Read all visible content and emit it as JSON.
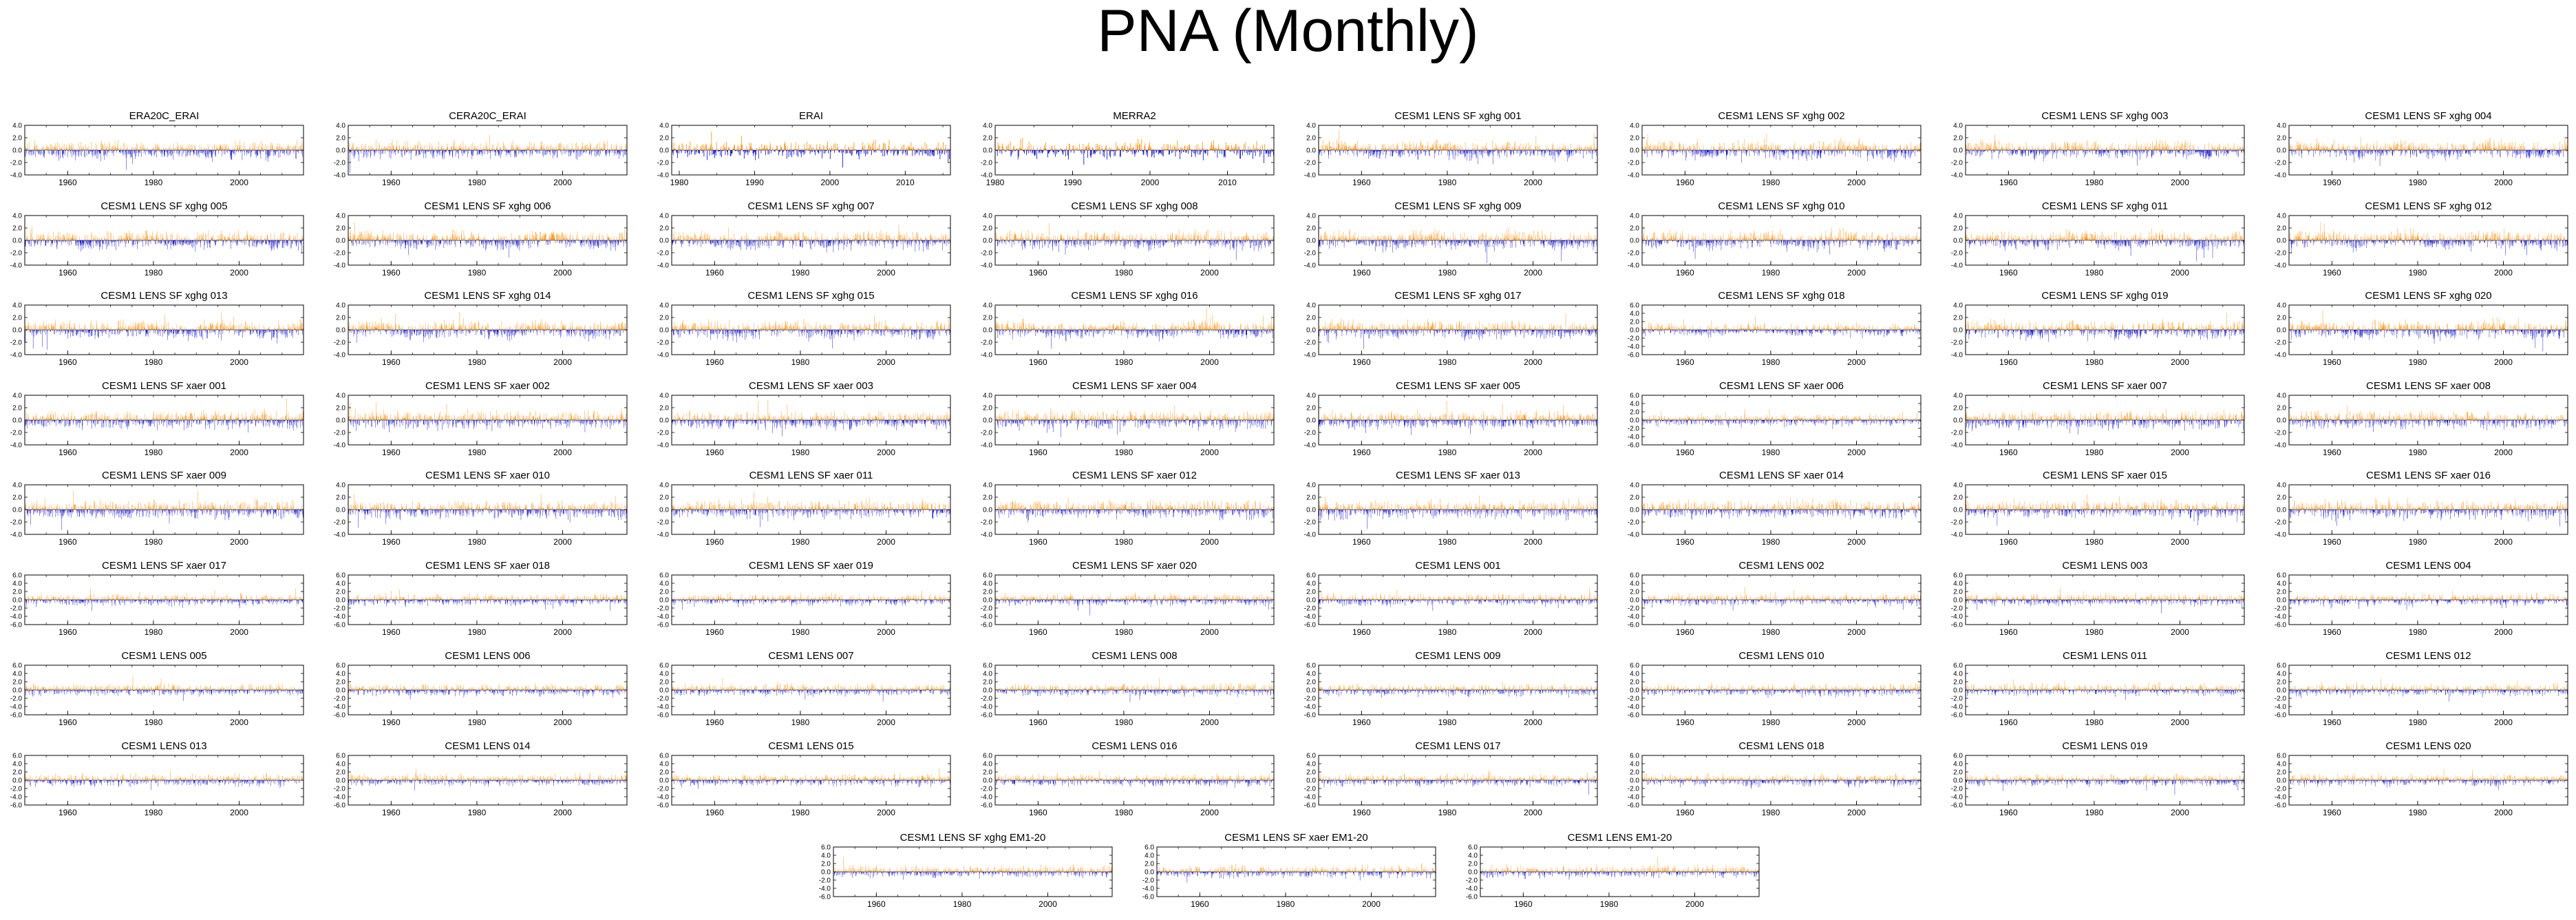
{
  "title": "PNA (Monthly)",
  "chart_data": {
    "type": "bar",
    "title": "PNA (Monthly)",
    "xlabel": "",
    "ylabel": "",
    "positive_color": "#ff8c00",
    "negative_color": "#0000cd",
    "grid": false,
    "ytick_labels_a": [
      "4.0",
      "2.0",
      "0.0",
      "-2.0",
      "-4.0"
    ],
    "ytick_labels_b": [
      "6.0",
      "4.0",
      "2.0",
      "0.0",
      "-2.0",
      "-4.0",
      "-6.0"
    ],
    "panels": [
      {
        "name": "ERA20C_ERAI",
        "xlim": [
          1950,
          2015
        ],
        "ylim": [
          -4,
          4
        ],
        "xticks": [
          "1960",
          "1980",
          "2000"
        ]
      },
      {
        "name": "CERA20C_ERAI",
        "xlim": [
          1950,
          2015
        ],
        "ylim": [
          -4,
          4
        ],
        "xticks": [
          "1960",
          "1980",
          "2000"
        ]
      },
      {
        "name": "ERAI",
        "xlim": [
          1979,
          2016
        ],
        "ylim": [
          -4,
          4
        ],
        "xticks": [
          "1980",
          "1990",
          "2000",
          "2010"
        ]
      },
      {
        "name": "MERRA2",
        "xlim": [
          1980,
          2016
        ],
        "ylim": [
          -4,
          4
        ],
        "xticks": [
          "1980",
          "1990",
          "2000",
          "2010"
        ]
      },
      {
        "name": "CESM1 LENS SF xghg 001",
        "xlim": [
          1950,
          2015
        ],
        "ylim": [
          -4,
          4
        ],
        "xticks": [
          "1960",
          "1980",
          "2000"
        ]
      },
      {
        "name": "CESM1 LENS SF xghg 002",
        "xlim": [
          1950,
          2015
        ],
        "ylim": [
          -4,
          4
        ],
        "xticks": [
          "1960",
          "1980",
          "2000"
        ]
      },
      {
        "name": "CESM1 LENS SF xghg 003",
        "xlim": [
          1950,
          2015
        ],
        "ylim": [
          -4,
          4
        ],
        "xticks": [
          "1960",
          "1980",
          "2000"
        ]
      },
      {
        "name": "CESM1 LENS SF xghg 004",
        "xlim": [
          1950,
          2015
        ],
        "ylim": [
          -4,
          4
        ],
        "xticks": [
          "1960",
          "1980",
          "2000"
        ]
      },
      {
        "name": "CESM1 LENS SF xghg 005",
        "xlim": [
          1950,
          2015
        ],
        "ylim": [
          -4,
          4
        ],
        "xticks": [
          "1960",
          "1980",
          "2000"
        ]
      },
      {
        "name": "CESM1 LENS SF xghg 006",
        "xlim": [
          1950,
          2015
        ],
        "ylim": [
          -4,
          4
        ],
        "xticks": [
          "1960",
          "1980",
          "2000"
        ]
      },
      {
        "name": "CESM1 LENS SF xghg 007",
        "xlim": [
          1950,
          2015
        ],
        "ylim": [
          -4,
          4
        ],
        "xticks": [
          "1960",
          "1980",
          "2000"
        ]
      },
      {
        "name": "CESM1 LENS SF xghg 008",
        "xlim": [
          1950,
          2015
        ],
        "ylim": [
          -4,
          4
        ],
        "xticks": [
          "1960",
          "1980",
          "2000"
        ]
      },
      {
        "name": "CESM1 LENS SF xghg 009",
        "xlim": [
          1950,
          2015
        ],
        "ylim": [
          -4,
          4
        ],
        "xticks": [
          "1960",
          "1980",
          "2000"
        ]
      },
      {
        "name": "CESM1 LENS SF xghg 010",
        "xlim": [
          1950,
          2015
        ],
        "ylim": [
          -4,
          4
        ],
        "xticks": [
          "1960",
          "1980",
          "2000"
        ]
      },
      {
        "name": "CESM1 LENS SF xghg 011",
        "xlim": [
          1950,
          2015
        ],
        "ylim": [
          -4,
          4
        ],
        "xticks": [
          "1960",
          "1980",
          "2000"
        ]
      },
      {
        "name": "CESM1 LENS SF xghg 012",
        "xlim": [
          1950,
          2015
        ],
        "ylim": [
          -4,
          4
        ],
        "xticks": [
          "1960",
          "1980",
          "2000"
        ]
      },
      {
        "name": "CESM1 LENS SF xghg 013",
        "xlim": [
          1950,
          2015
        ],
        "ylim": [
          -4,
          4
        ],
        "xticks": [
          "1960",
          "1980",
          "2000"
        ]
      },
      {
        "name": "CESM1 LENS SF xghg 014",
        "xlim": [
          1950,
          2015
        ],
        "ylim": [
          -4,
          4
        ],
        "xticks": [
          "1960",
          "1980",
          "2000"
        ]
      },
      {
        "name": "CESM1 LENS SF xghg 015",
        "xlim": [
          1950,
          2015
        ],
        "ylim": [
          -4,
          4
        ],
        "xticks": [
          "1960",
          "1980",
          "2000"
        ]
      },
      {
        "name": "CESM1 LENS SF xghg 016",
        "xlim": [
          1950,
          2015
        ],
        "ylim": [
          -4,
          4
        ],
        "xticks": [
          "1960",
          "1980",
          "2000"
        ]
      },
      {
        "name": "CESM1 LENS SF xghg 017",
        "xlim": [
          1950,
          2015
        ],
        "ylim": [
          -4,
          4
        ],
        "xticks": [
          "1960",
          "1980",
          "2000"
        ]
      },
      {
        "name": "CESM1 LENS SF xghg 018",
        "xlim": [
          1950,
          2015
        ],
        "ylim": [
          -6,
          6
        ],
        "xticks": [
          "1960",
          "1980",
          "2000"
        ]
      },
      {
        "name": "CESM1 LENS SF xghg 019",
        "xlim": [
          1950,
          2015
        ],
        "ylim": [
          -4,
          4
        ],
        "xticks": [
          "1960",
          "1980",
          "2000"
        ]
      },
      {
        "name": "CESM1 LENS SF xghg 020",
        "xlim": [
          1950,
          2015
        ],
        "ylim": [
          -4,
          4
        ],
        "xticks": [
          "1960",
          "1980",
          "2000"
        ]
      },
      {
        "name": "CESM1 LENS SF xaer 001",
        "xlim": [
          1950,
          2015
        ],
        "ylim": [
          -4,
          4
        ],
        "xticks": [
          "1960",
          "1980",
          "2000"
        ]
      },
      {
        "name": "CESM1 LENS SF xaer 002",
        "xlim": [
          1950,
          2015
        ],
        "ylim": [
          -4,
          4
        ],
        "xticks": [
          "1960",
          "1980",
          "2000"
        ]
      },
      {
        "name": "CESM1 LENS SF xaer 003",
        "xlim": [
          1950,
          2015
        ],
        "ylim": [
          -4,
          4
        ],
        "xticks": [
          "1960",
          "1980",
          "2000"
        ]
      },
      {
        "name": "CESM1 LENS SF xaer 004",
        "xlim": [
          1950,
          2015
        ],
        "ylim": [
          -4,
          4
        ],
        "xticks": [
          "1960",
          "1980",
          "2000"
        ]
      },
      {
        "name": "CESM1 LENS SF xaer 005",
        "xlim": [
          1950,
          2015
        ],
        "ylim": [
          -4,
          4
        ],
        "xticks": [
          "1960",
          "1980",
          "2000"
        ]
      },
      {
        "name": "CESM1 LENS SF xaer 006",
        "xlim": [
          1950,
          2015
        ],
        "ylim": [
          -6,
          6
        ],
        "xticks": [
          "1960",
          "1980",
          "2000"
        ]
      },
      {
        "name": "CESM1 LENS SF xaer 007",
        "xlim": [
          1950,
          2015
        ],
        "ylim": [
          -4,
          4
        ],
        "xticks": [
          "1960",
          "1980",
          "2000"
        ]
      },
      {
        "name": "CESM1 LENS SF xaer 008",
        "xlim": [
          1950,
          2015
        ],
        "ylim": [
          -4,
          4
        ],
        "xticks": [
          "1960",
          "1980",
          "2000"
        ]
      },
      {
        "name": "CESM1 LENS SF xaer 009",
        "xlim": [
          1950,
          2015
        ],
        "ylim": [
          -4,
          4
        ],
        "xticks": [
          "1960",
          "1980",
          "2000"
        ]
      },
      {
        "name": "CESM1 LENS SF xaer 010",
        "xlim": [
          1950,
          2015
        ],
        "ylim": [
          -4,
          4
        ],
        "xticks": [
          "1960",
          "1980",
          "2000"
        ]
      },
      {
        "name": "CESM1 LENS SF xaer 011",
        "xlim": [
          1950,
          2015
        ],
        "ylim": [
          -4,
          4
        ],
        "xticks": [
          "1960",
          "1980",
          "2000"
        ]
      },
      {
        "name": "CESM1 LENS SF xaer 012",
        "xlim": [
          1950,
          2015
        ],
        "ylim": [
          -4,
          4
        ],
        "xticks": [
          "1960",
          "1980",
          "2000"
        ]
      },
      {
        "name": "CESM1 LENS SF xaer 013",
        "xlim": [
          1950,
          2015
        ],
        "ylim": [
          -4,
          4
        ],
        "xticks": [
          "1960",
          "1980",
          "2000"
        ]
      },
      {
        "name": "CESM1 LENS SF xaer 014",
        "xlim": [
          1950,
          2015
        ],
        "ylim": [
          -4,
          4
        ],
        "xticks": [
          "1960",
          "1980",
          "2000"
        ]
      },
      {
        "name": "CESM1 LENS SF xaer 015",
        "xlim": [
          1950,
          2015
        ],
        "ylim": [
          -4,
          4
        ],
        "xticks": [
          "1960",
          "1980",
          "2000"
        ]
      },
      {
        "name": "CESM1 LENS SF xaer 016",
        "xlim": [
          1950,
          2015
        ],
        "ylim": [
          -4,
          4
        ],
        "xticks": [
          "1960",
          "1980",
          "2000"
        ]
      },
      {
        "name": "CESM1 LENS SF xaer 017",
        "xlim": [
          1950,
          2015
        ],
        "ylim": [
          -6,
          6
        ],
        "xticks": [
          "1960",
          "1980",
          "2000"
        ]
      },
      {
        "name": "CESM1 LENS SF xaer 018",
        "xlim": [
          1950,
          2015
        ],
        "ylim": [
          -6,
          6
        ],
        "xticks": [
          "1960",
          "1980",
          "2000"
        ]
      },
      {
        "name": "CESM1 LENS SF xaer 019",
        "xlim": [
          1950,
          2015
        ],
        "ylim": [
          -6,
          6
        ],
        "xticks": [
          "1960",
          "1980",
          "2000"
        ]
      },
      {
        "name": "CESM1 LENS SF xaer 020",
        "xlim": [
          1950,
          2015
        ],
        "ylim": [
          -6,
          6
        ],
        "xticks": [
          "1960",
          "1980",
          "2000"
        ]
      },
      {
        "name": "CESM1 LENS 001",
        "xlim": [
          1950,
          2015
        ],
        "ylim": [
          -6,
          6
        ],
        "xticks": [
          "1960",
          "1980",
          "2000"
        ]
      },
      {
        "name": "CESM1 LENS 002",
        "xlim": [
          1950,
          2015
        ],
        "ylim": [
          -6,
          6
        ],
        "xticks": [
          "1960",
          "1980",
          "2000"
        ]
      },
      {
        "name": "CESM1 LENS 003",
        "xlim": [
          1950,
          2015
        ],
        "ylim": [
          -6,
          6
        ],
        "xticks": [
          "1960",
          "1980",
          "2000"
        ]
      },
      {
        "name": "CESM1 LENS 004",
        "xlim": [
          1950,
          2015
        ],
        "ylim": [
          -6,
          6
        ],
        "xticks": [
          "1960",
          "1980",
          "2000"
        ]
      },
      {
        "name": "CESM1 LENS 005",
        "xlim": [
          1950,
          2015
        ],
        "ylim": [
          -6,
          6
        ],
        "xticks": [
          "1960",
          "1980",
          "2000"
        ]
      },
      {
        "name": "CESM1 LENS 006",
        "xlim": [
          1950,
          2015
        ],
        "ylim": [
          -6,
          6
        ],
        "xticks": [
          "1960",
          "1980",
          "2000"
        ]
      },
      {
        "name": "CESM1 LENS 007",
        "xlim": [
          1950,
          2015
        ],
        "ylim": [
          -6,
          6
        ],
        "xticks": [
          "1960",
          "1980",
          "2000"
        ]
      },
      {
        "name": "CESM1 LENS 008",
        "xlim": [
          1950,
          2015
        ],
        "ylim": [
          -6,
          6
        ],
        "xticks": [
          "1960",
          "1980",
          "2000"
        ]
      },
      {
        "name": "CESM1 LENS 009",
        "xlim": [
          1950,
          2015
        ],
        "ylim": [
          -6,
          6
        ],
        "xticks": [
          "1960",
          "1980",
          "2000"
        ]
      },
      {
        "name": "CESM1 LENS 010",
        "xlim": [
          1950,
          2015
        ],
        "ylim": [
          -6,
          6
        ],
        "xticks": [
          "1960",
          "1980",
          "2000"
        ]
      },
      {
        "name": "CESM1 LENS 011",
        "xlim": [
          1950,
          2015
        ],
        "ylim": [
          -6,
          6
        ],
        "xticks": [
          "1960",
          "1980",
          "2000"
        ]
      },
      {
        "name": "CESM1 LENS 012",
        "xlim": [
          1950,
          2015
        ],
        "ylim": [
          -6,
          6
        ],
        "xticks": [
          "1960",
          "1980",
          "2000"
        ]
      },
      {
        "name": "CESM1 LENS 013",
        "xlim": [
          1950,
          2015
        ],
        "ylim": [
          -6,
          6
        ],
        "xticks": [
          "1960",
          "1980",
          "2000"
        ]
      },
      {
        "name": "CESM1 LENS 014",
        "xlim": [
          1950,
          2015
        ],
        "ylim": [
          -6,
          6
        ],
        "xticks": [
          "1960",
          "1980",
          "2000"
        ]
      },
      {
        "name": "CESM1 LENS 015",
        "xlim": [
          1950,
          2015
        ],
        "ylim": [
          -6,
          6
        ],
        "xticks": [
          "1960",
          "1980",
          "2000"
        ]
      },
      {
        "name": "CESM1 LENS 016",
        "xlim": [
          1950,
          2015
        ],
        "ylim": [
          -6,
          6
        ],
        "xticks": [
          "1960",
          "1980",
          "2000"
        ]
      },
      {
        "name": "CESM1 LENS 017",
        "xlim": [
          1950,
          2015
        ],
        "ylim": [
          -6,
          6
        ],
        "xticks": [
          "1960",
          "1980",
          "2000"
        ]
      },
      {
        "name": "CESM1 LENS 018",
        "xlim": [
          1950,
          2015
        ],
        "ylim": [
          -6,
          6
        ],
        "xticks": [
          "1960",
          "1980",
          "2000"
        ]
      },
      {
        "name": "CESM1 LENS 019",
        "xlim": [
          1950,
          2015
        ],
        "ylim": [
          -6,
          6
        ],
        "xticks": [
          "1960",
          "1980",
          "2000"
        ]
      },
      {
        "name": "CESM1 LENS 020",
        "xlim": [
          1950,
          2015
        ],
        "ylim": [
          -6,
          6
        ],
        "xticks": [
          "1960",
          "1980",
          "2000"
        ]
      },
      {
        "name": "CESM1 LENS SF xghg EM1-20",
        "xlim": [
          1950,
          2015
        ],
        "ylim": [
          -6,
          6
        ],
        "xticks": [
          "1960",
          "1980",
          "2000"
        ]
      },
      {
        "name": "CESM1 LENS SF xaer EM1-20",
        "xlim": [
          1950,
          2015
        ],
        "ylim": [
          -6,
          6
        ],
        "xticks": [
          "1960",
          "1980",
          "2000"
        ]
      },
      {
        "name": "CESM1 LENS EM1-20",
        "xlim": [
          1950,
          2015
        ],
        "ylim": [
          -6,
          6
        ],
        "xticks": [
          "1960",
          "1980",
          "2000"
        ]
      }
    ]
  }
}
